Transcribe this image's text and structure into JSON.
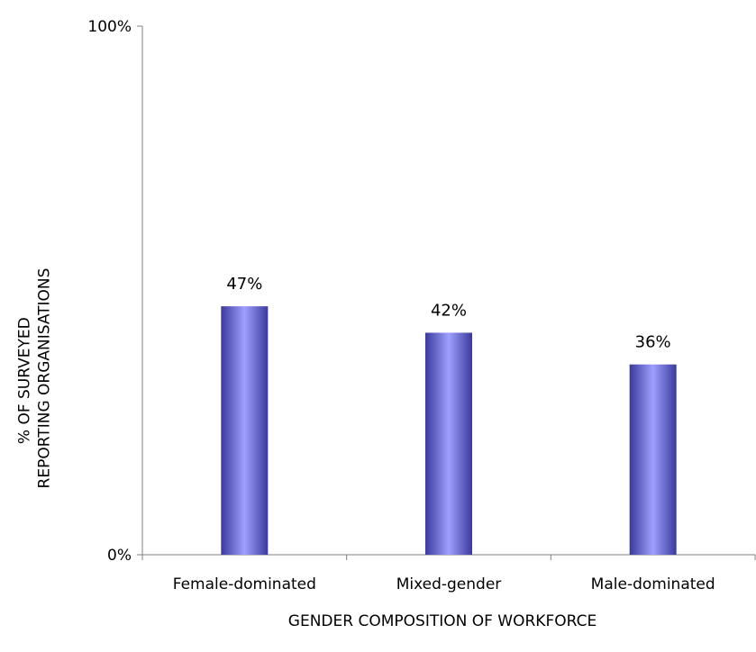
{
  "chart_data": {
    "type": "bar",
    "title": "",
    "categories": [
      "Female-dominated",
      "Mixed-gender",
      "Male-dominated"
    ],
    "values": [
      47,
      42,
      36
    ],
    "value_labels": [
      "47%",
      "42%",
      "36%"
    ],
    "xlabel": "GENDER COMPOSITION OF WORKFORCE",
    "ylabel_lines": [
      "% OF SURVEYED",
      "REPORTING ORGANISATIONS"
    ],
    "ylim": [
      0,
      100
    ],
    "y_ticks": [
      {
        "value": 0,
        "label": "0%"
      },
      {
        "value": 100,
        "label": "100%"
      }
    ],
    "grid": false,
    "legend": "none",
    "colors": {
      "bar_edge": "#3a3a9e",
      "bar_center": "#9f9fff",
      "axis": "#808080"
    }
  }
}
